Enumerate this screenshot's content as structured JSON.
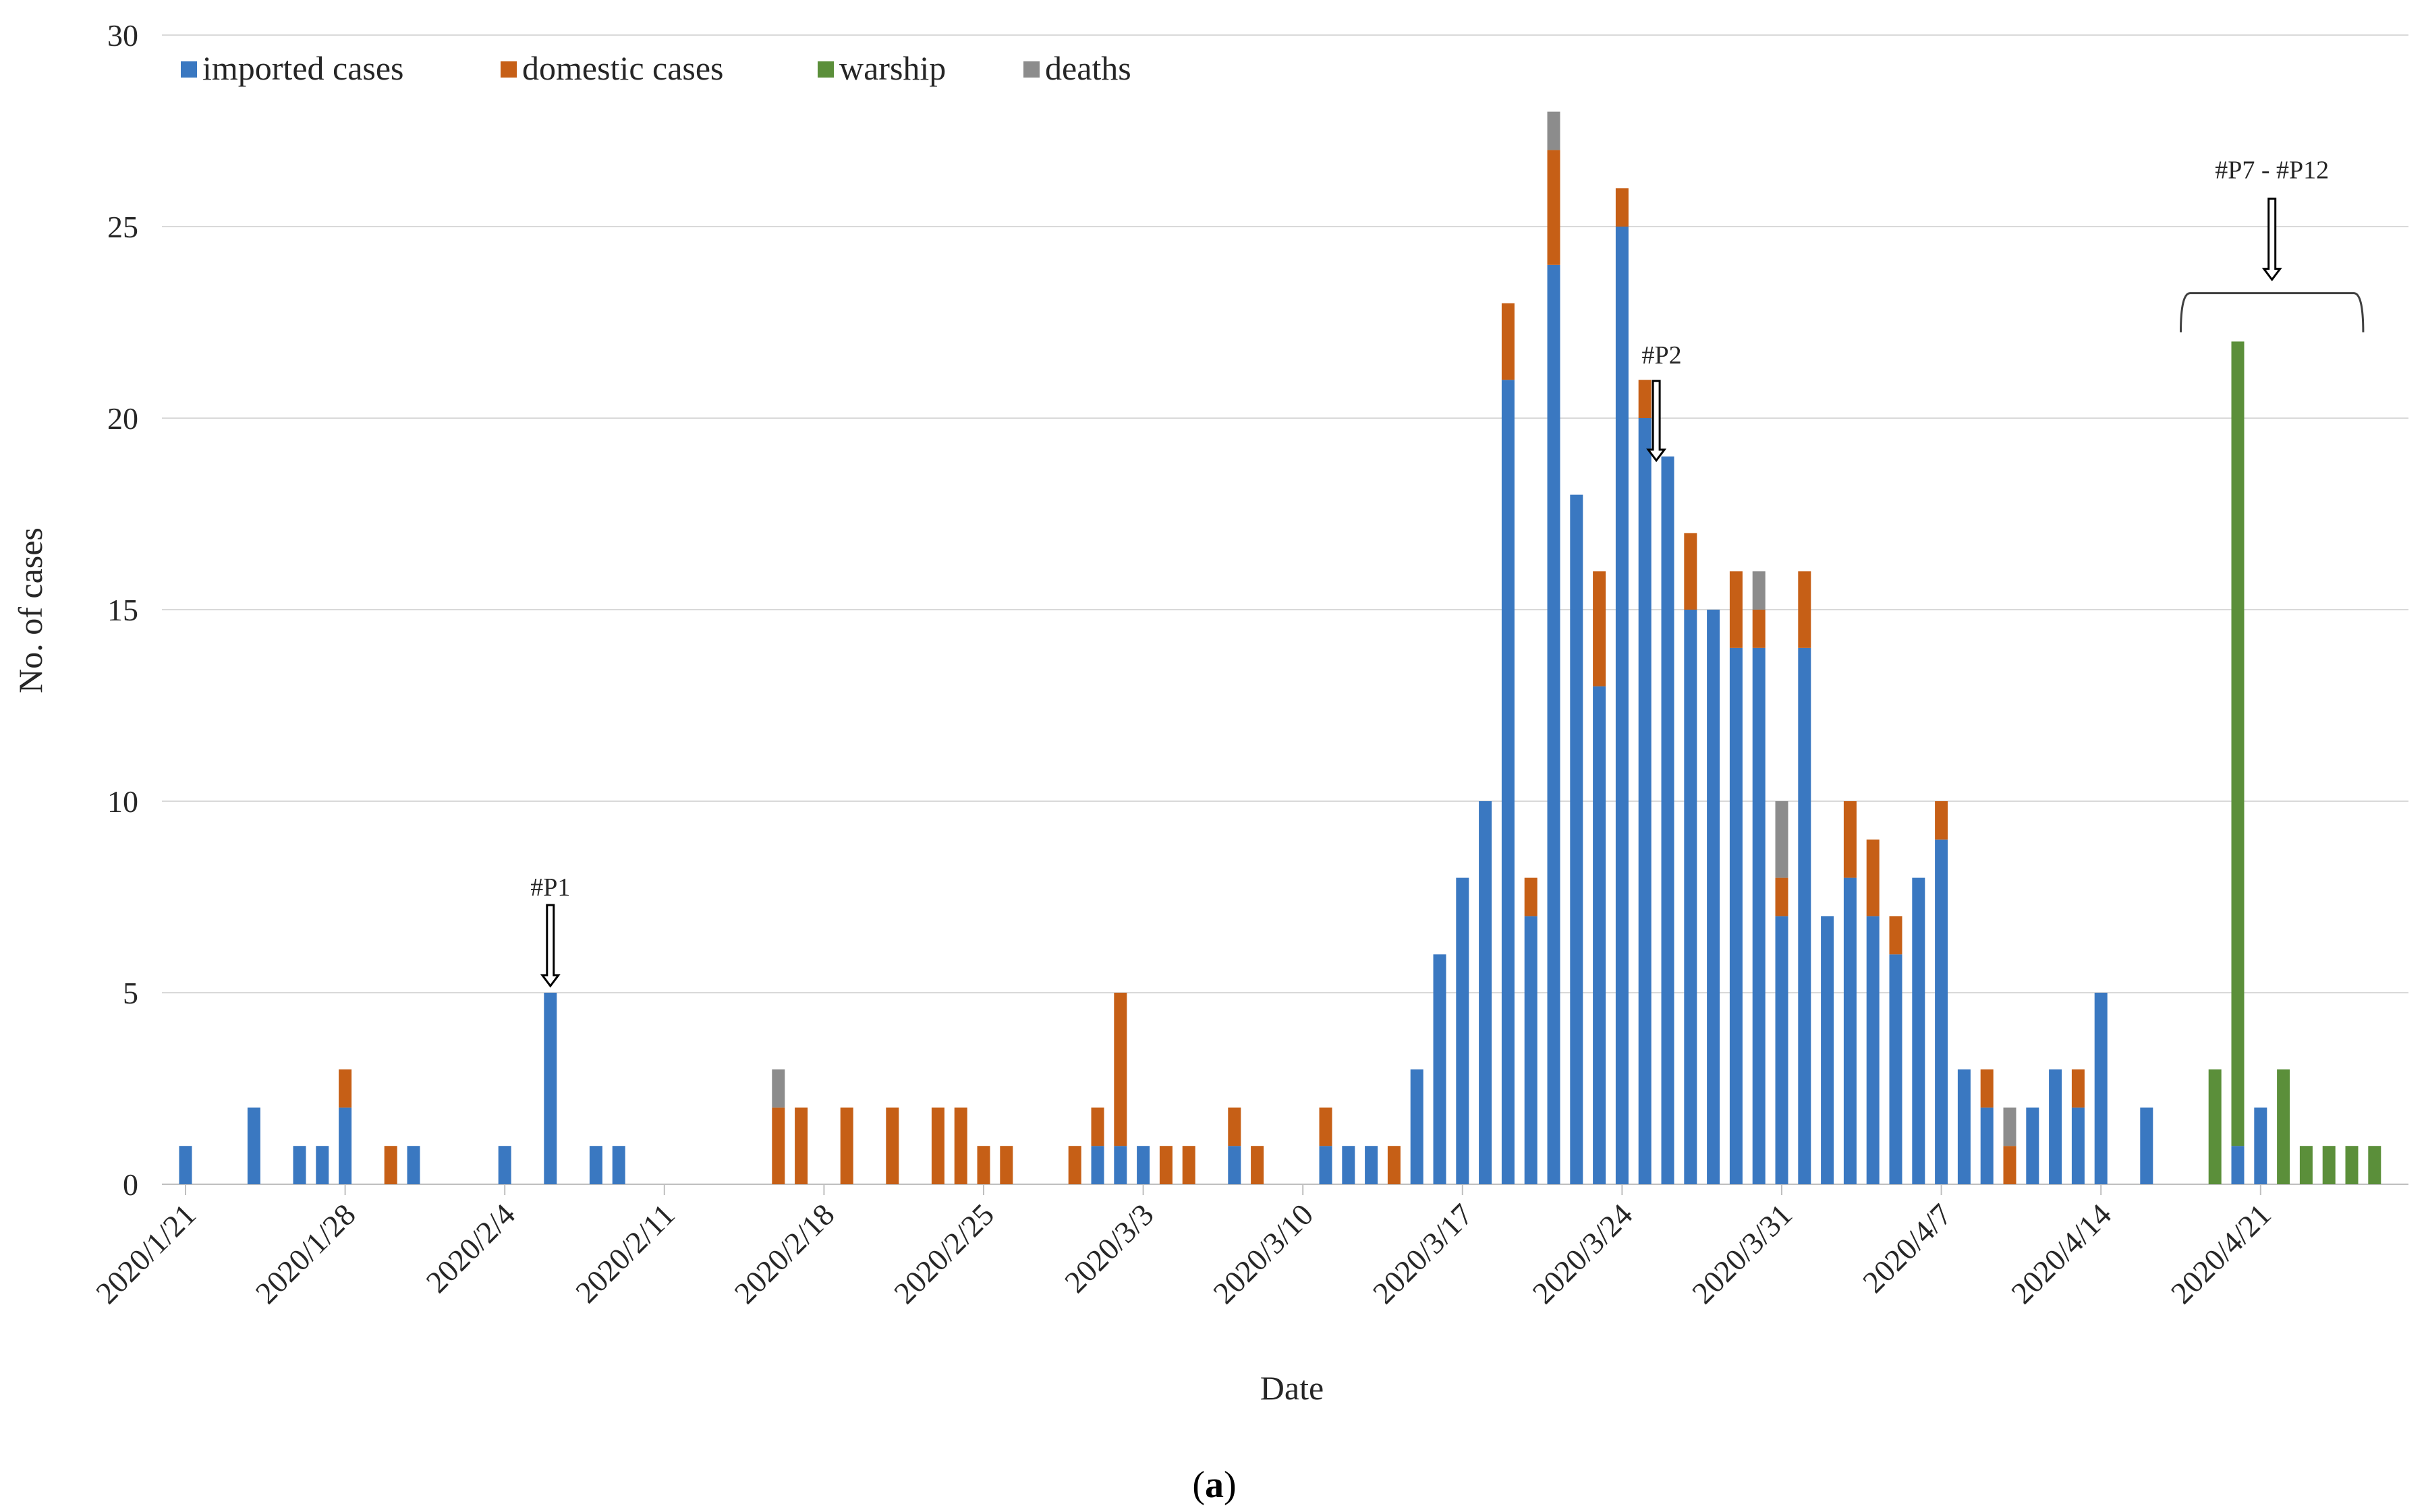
{
  "chart_data": {
    "type": "bar",
    "stacked": true,
    "title": "",
    "xlabel": "Date",
    "ylabel": "No. of cases",
    "ylim": [
      0,
      30
    ],
    "yticks": [
      0,
      5,
      10,
      15,
      20,
      25,
      30
    ],
    "grid": true,
    "legend_position": "top-left",
    "caption": "(a)",
    "caption_letter": "a",
    "start_date": "2020/1/21",
    "num_days": 97,
    "x_tick_labels": [
      {
        "day": 0,
        "label": "2020/1/21"
      },
      {
        "day": 7,
        "label": "2020/1/28"
      },
      {
        "day": 14,
        "label": "2020/2/4"
      },
      {
        "day": 21,
        "label": "2020/2/11"
      },
      {
        "day": 28,
        "label": "2020/2/18"
      },
      {
        "day": 35,
        "label": "2020/2/25"
      },
      {
        "day": 42,
        "label": "2020/3/3"
      },
      {
        "day": 49,
        "label": "2020/3/10"
      },
      {
        "day": 56,
        "label": "2020/3/17"
      },
      {
        "day": 63,
        "label": "2020/3/24"
      },
      {
        "day": 70,
        "label": "2020/3/31"
      },
      {
        "day": 77,
        "label": "2020/4/7"
      },
      {
        "day": 84,
        "label": "2020/4/14"
      },
      {
        "day": 91,
        "label": "2020/4/21"
      }
    ],
    "colors": {
      "imported": "#3a78c1",
      "domestic": "#c65f16",
      "warship": "#5b8f3a",
      "deaths": "#8c8c8c"
    },
    "series": [
      {
        "key": "imported",
        "name": "imported cases",
        "color": "#3a78c1",
        "values": [
          1,
          0,
          0,
          2,
          0,
          1,
          1,
          2,
          0,
          0,
          1,
          0,
          0,
          0,
          1,
          0,
          5,
          0,
          1,
          1,
          0,
          0,
          0,
          0,
          0,
          0,
          0,
          0,
          0,
          0,
          0,
          0,
          0,
          0,
          0,
          0,
          0,
          0,
          0,
          0,
          1,
          1,
          1,
          0,
          0,
          0,
          1,
          0,
          0,
          0,
          1,
          1,
          1,
          0,
          3,
          6,
          8,
          10,
          21,
          7,
          24,
          18,
          13,
          25,
          20,
          19,
          15,
          15,
          14,
          14,
          7,
          14,
          7,
          8,
          7,
          6,
          8,
          9,
          3,
          2,
          0,
          2,
          3,
          2,
          5,
          0,
          2,
          0,
          0,
          0,
          1,
          2,
          0,
          0,
          0,
          0,
          0
        ]
      },
      {
        "key": "domestic",
        "name": "domestic cases",
        "color": "#c65f16",
        "values": [
          0,
          0,
          0,
          0,
          0,
          0,
          0,
          1,
          0,
          1,
          0,
          0,
          0,
          0,
          0,
          0,
          0,
          0,
          0,
          0,
          0,
          0,
          0,
          0,
          0,
          0,
          2,
          2,
          0,
          2,
          0,
          2,
          0,
          2,
          2,
          1,
          1,
          0,
          0,
          1,
          1,
          4,
          0,
          1,
          1,
          0,
          1,
          1,
          0,
          0,
          1,
          0,
          0,
          1,
          0,
          0,
          0,
          0,
          2,
          1,
          3,
          0,
          3,
          1,
          1,
          0,
          2,
          0,
          2,
          1,
          1,
          2,
          0,
          2,
          2,
          1,
          0,
          1,
          0,
          1,
          1,
          0,
          0,
          1,
          0,
          0,
          0,
          0,
          0,
          0,
          0,
          0,
          0,
          0,
          0,
          0,
          0
        ]
      },
      {
        "key": "warship",
        "name": "warship",
        "color": "#5b8f3a",
        "values": [
          0,
          0,
          0,
          0,
          0,
          0,
          0,
          0,
          0,
          0,
          0,
          0,
          0,
          0,
          0,
          0,
          0,
          0,
          0,
          0,
          0,
          0,
          0,
          0,
          0,
          0,
          0,
          0,
          0,
          0,
          0,
          0,
          0,
          0,
          0,
          0,
          0,
          0,
          0,
          0,
          0,
          0,
          0,
          0,
          0,
          0,
          0,
          0,
          0,
          0,
          0,
          0,
          0,
          0,
          0,
          0,
          0,
          0,
          0,
          0,
          0,
          0,
          0,
          0,
          0,
          0,
          0,
          0,
          0,
          0,
          0,
          0,
          0,
          0,
          0,
          0,
          0,
          0,
          0,
          0,
          0,
          0,
          0,
          0,
          0,
          0,
          0,
          0,
          0,
          3,
          21,
          0,
          3,
          1,
          1,
          1,
          1
        ]
      },
      {
        "key": "deaths",
        "name": "deaths",
        "color": "#8c8c8c",
        "values": [
          0,
          0,
          0,
          0,
          0,
          0,
          0,
          0,
          0,
          0,
          0,
          0,
          0,
          0,
          0,
          0,
          0,
          0,
          0,
          0,
          0,
          0,
          0,
          0,
          0,
          0,
          1,
          0,
          0,
          0,
          0,
          0,
          0,
          0,
          0,
          0,
          0,
          0,
          0,
          0,
          0,
          0,
          0,
          0,
          0,
          0,
          0,
          0,
          0,
          0,
          0,
          0,
          0,
          0,
          0,
          0,
          0,
          0,
          0,
          0,
          1,
          0,
          0,
          0,
          0,
          0,
          0,
          0,
          0,
          1,
          2,
          0,
          0,
          0,
          0,
          0,
          0,
          0,
          0,
          0,
          1,
          0,
          0,
          0,
          0,
          0,
          0,
          0,
          0,
          0,
          0,
          0,
          0,
          0,
          0,
          0,
          0
        ]
      }
    ],
    "annotations": [
      {
        "label": "#P1",
        "day": 16,
        "value": 5
      },
      {
        "label": "#P2",
        "day": 64.5,
        "value": 19
      },
      {
        "label": "#P7 - #P12",
        "day_start": 87.5,
        "day_end": 95.5,
        "value": 23
      }
    ]
  }
}
